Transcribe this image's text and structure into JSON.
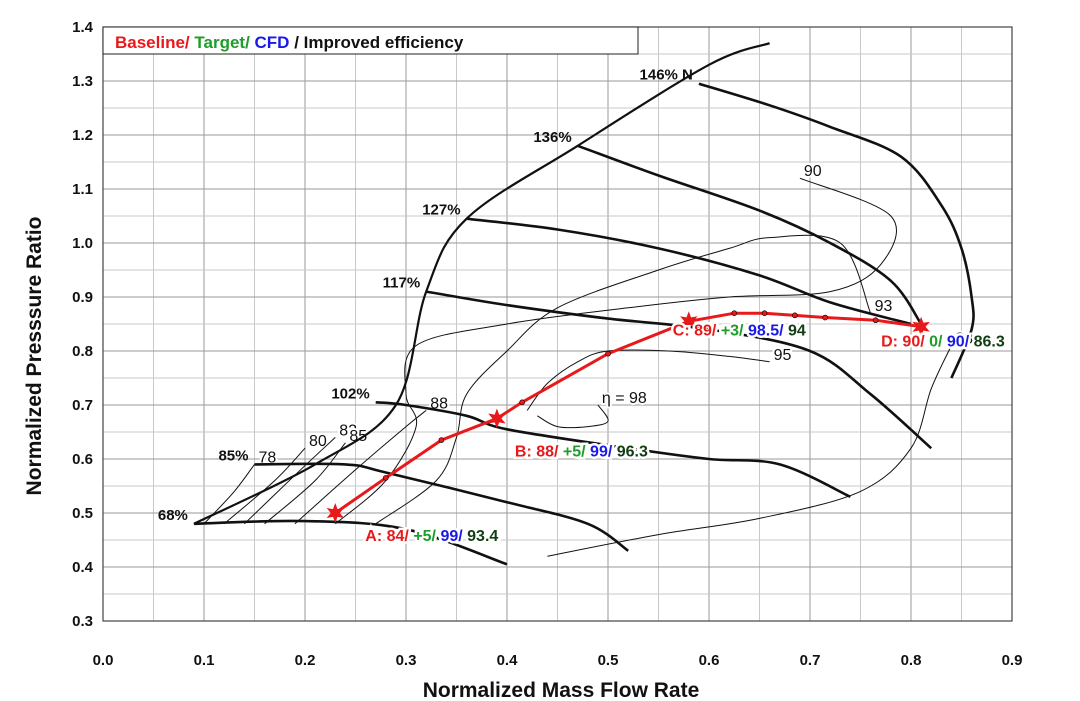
{
  "chart_data": {
    "type": "line",
    "title": "",
    "xlabel": "Normalized Mass Flow Rate",
    "ylabel": "Normalized Presssure Ratio",
    "xlim": [
      0.0,
      0.9
    ],
    "ylim": [
      0.3,
      1.4
    ],
    "xticks": [
      "0.0",
      "0.1",
      "0.2",
      "0.3",
      "0.4",
      "0.5",
      "0.6",
      "0.7",
      "0.8",
      "0.9"
    ],
    "yticks": [
      "0.3",
      "0.4",
      "0.5",
      "0.6",
      "0.7",
      "0.8",
      "0.9",
      "1.0",
      "1.1",
      "1.2",
      "1.3",
      "1.4"
    ],
    "grid": true,
    "legend": {
      "position": "top-left",
      "parts": [
        {
          "text": "Baseline/ ",
          "color": "#e8191b"
        },
        {
          "text": "Target/ ",
          "color": "#1e9d2b"
        },
        {
          "text": "CFD ",
          "color": "#1a1ae6"
        },
        {
          "text": "/ Improved efficiency",
          "color": "#111111"
        }
      ]
    },
    "colors": {
      "baseline": "#e8191b",
      "target": "#1e9d2b",
      "cfd": "#1a1ae6",
      "improved": "#123d12",
      "lines": "#111111"
    },
    "speed_lines": [
      {
        "label": "68%",
        "points": [
          [
            0.09,
            0.48
          ],
          [
            0.2,
            0.485
          ],
          [
            0.3,
            0.47
          ],
          [
            0.4,
            0.405
          ]
        ]
      },
      {
        "label": "85%",
        "points": [
          [
            0.15,
            0.59
          ],
          [
            0.24,
            0.59
          ],
          [
            0.28,
            0.575
          ],
          [
            0.4,
            0.52
          ],
          [
            0.48,
            0.48
          ],
          [
            0.52,
            0.43
          ]
        ]
      },
      {
        "label": "102%",
        "points": [
          [
            0.27,
            0.705
          ],
          [
            0.3,
            0.7
          ],
          [
            0.36,
            0.68
          ],
          [
            0.4,
            0.655
          ],
          [
            0.52,
            0.62
          ],
          [
            0.6,
            0.6
          ],
          [
            0.67,
            0.59
          ],
          [
            0.74,
            0.53
          ]
        ]
      },
      {
        "label": "117%",
        "points": [
          [
            0.32,
            0.91
          ],
          [
            0.4,
            0.885
          ],
          [
            0.5,
            0.86
          ],
          [
            0.6,
            0.84
          ],
          [
            0.7,
            0.8
          ],
          [
            0.76,
            0.72
          ],
          [
            0.82,
            0.62
          ]
        ]
      },
      {
        "label": "127%",
        "points": [
          [
            0.36,
            1.045
          ],
          [
            0.45,
            1.025
          ],
          [
            0.55,
            0.99
          ],
          [
            0.65,
            0.94
          ],
          [
            0.72,
            0.89
          ],
          [
            0.8,
            0.85
          ]
        ]
      },
      {
        "label": "136%",
        "points": [
          [
            0.47,
            1.18
          ],
          [
            0.55,
            1.125
          ],
          [
            0.65,
            1.06
          ],
          [
            0.72,
            1.0
          ],
          [
            0.78,
            0.93
          ],
          [
            0.81,
            0.85
          ]
        ]
      },
      {
        "label": "146% N",
        "points": [
          [
            0.59,
            1.295
          ],
          [
            0.66,
            1.255
          ],
          [
            0.72,
            1.215
          ],
          [
            0.79,
            1.16
          ],
          [
            0.83,
            1.07
          ],
          [
            0.85,
            0.99
          ],
          [
            0.86,
            0.9
          ],
          [
            0.86,
            0.84
          ],
          [
            0.84,
            0.75
          ]
        ]
      }
    ],
    "surge_line": {
      "points": [
        [
          0.09,
          0.48
        ],
        [
          0.21,
          0.59
        ],
        [
          0.29,
          0.7
        ],
        [
          0.32,
          0.91
        ],
        [
          0.36,
          1.045
        ],
        [
          0.47,
          1.18
        ],
        [
          0.6,
          1.33
        ],
        [
          0.66,
          1.37
        ]
      ]
    },
    "efficiency_contours": [
      {
        "label": "78",
        "points": [
          [
            0.1,
            0.48
          ],
          [
            0.13,
            0.54
          ],
          [
            0.15,
            0.59
          ]
        ]
      },
      {
        "label": "80",
        "points": [
          [
            0.12,
            0.48
          ],
          [
            0.17,
            0.56
          ],
          [
            0.2,
            0.62
          ]
        ]
      },
      {
        "label": "83",
        "points": [
          [
            0.14,
            0.48
          ],
          [
            0.19,
            0.57
          ],
          [
            0.23,
            0.64
          ]
        ]
      },
      {
        "label": "85",
        "points": [
          [
            0.16,
            0.48
          ],
          [
            0.21,
            0.56
          ],
          [
            0.24,
            0.63
          ]
        ]
      },
      {
        "label": "88",
        "points": [
          [
            0.19,
            0.48
          ],
          [
            0.25,
            0.58
          ],
          [
            0.3,
            0.66
          ],
          [
            0.32,
            0.69
          ]
        ]
      },
      {
        "label": "90",
        "points": [
          [
            0.23,
            0.48
          ],
          [
            0.28,
            0.56
          ],
          [
            0.31,
            0.66
          ],
          [
            0.3,
            0.72
          ],
          [
            0.31,
            0.81
          ],
          [
            0.4,
            0.85
          ],
          [
            0.52,
            0.88
          ],
          [
            0.62,
            0.9
          ],
          [
            0.72,
            0.91
          ],
          [
            0.77,
            0.96
          ],
          [
            0.78,
            1.05
          ],
          [
            0.69,
            1.12
          ]
        ]
      },
      {
        "label": "93",
        "points": [
          [
            0.27,
            0.48
          ],
          [
            0.33,
            0.56
          ],
          [
            0.35,
            0.64
          ],
          [
            0.36,
            0.72
          ],
          [
            0.4,
            0.8
          ],
          [
            0.45,
            0.88
          ],
          [
            0.55,
            0.95
          ],
          [
            0.62,
            0.99
          ],
          [
            0.66,
            1.01
          ],
          [
            0.73,
            1.0
          ],
          [
            0.76,
            0.87
          ]
        ]
      },
      {
        "label": "95",
        "points": [
          [
            0.42,
            0.69
          ],
          [
            0.44,
            0.74
          ],
          [
            0.47,
            0.78
          ],
          [
            0.5,
            0.8
          ],
          [
            0.56,
            0.8
          ],
          [
            0.62,
            0.79
          ],
          [
            0.66,
            0.78
          ]
        ]
      },
      {
        "label": "η = 98",
        "points": [
          [
            0.43,
            0.68
          ],
          [
            0.45,
            0.66
          ],
          [
            0.48,
            0.66
          ],
          [
            0.5,
            0.67
          ],
          [
            0.49,
            0.7
          ]
        ]
      },
      {
        "label": "83",
        "points": [
          [
            0.44,
            0.42
          ],
          [
            0.55,
            0.46
          ],
          [
            0.65,
            0.49
          ],
          [
            0.75,
            0.54
          ],
          [
            0.8,
            0.62
          ],
          [
            0.82,
            0.73
          ],
          [
            0.84,
            0.81
          ]
        ]
      }
    ],
    "operating_points": [
      {
        "name": "A",
        "x": 0.23,
        "y": 0.5,
        "baseline": "84/ ",
        "target": "+5/ ",
        "cfd": "99/ ",
        "improved": "93.4"
      },
      {
        "name": "B",
        "x": 0.39,
        "y": 0.675,
        "baseline": "88/ ",
        "target": "+5/ ",
        "cfd": "99/ ",
        "improved": "96.3"
      },
      {
        "name": "C",
        "x": 0.58,
        "y": 0.855,
        "baseline": "89/ ",
        "target": "+3/ ",
        "cfd": "98.5/ ",
        "improved": "94"
      },
      {
        "name": "D",
        "x": 0.81,
        "y": 0.845,
        "baseline": "90/ ",
        "target": "0/ ",
        "cfd": "90/ ",
        "improved": "86.3"
      }
    ],
    "operating_line": {
      "x": [
        0.23,
        0.28,
        0.335,
        0.39,
        0.415,
        0.5,
        0.58,
        0.625,
        0.655,
        0.685,
        0.715,
        0.765,
        0.81
      ],
      "y": [
        0.5,
        0.565,
        0.635,
        0.675,
        0.705,
        0.795,
        0.855,
        0.87,
        0.87,
        0.866,
        0.862,
        0.857,
        0.845
      ]
    },
    "labels": {
      "A": "A: ",
      "B": "B: ",
      "C": "C: ",
      "D": "D: "
    }
  }
}
